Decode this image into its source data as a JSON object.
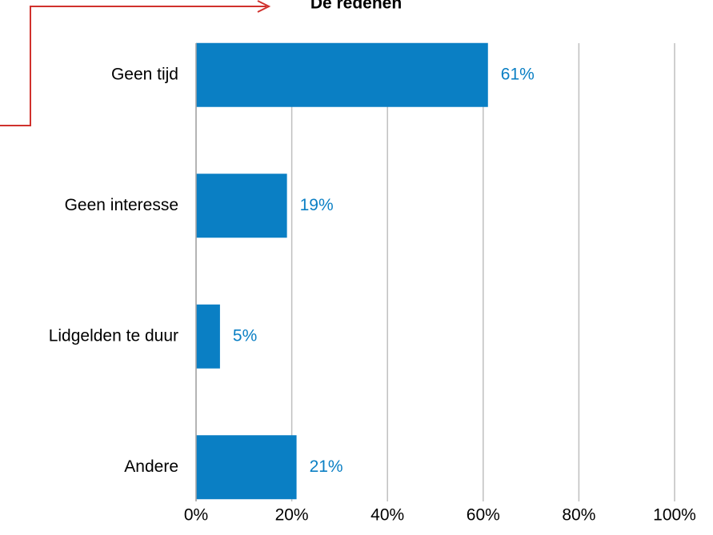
{
  "chart_data": {
    "type": "bar",
    "orientation": "horizontal",
    "title": "De redenen",
    "categories": [
      "Geen tijd",
      "Geen interesse",
      "Lidgelden te duur",
      "Andere"
    ],
    "values": [
      61,
      19,
      5,
      21
    ],
    "value_labels": [
      "61%",
      "19%",
      "5%",
      "21%"
    ],
    "color": "#0a7fc4",
    "xlim": [
      0,
      100
    ],
    "xticks": [
      {
        "value": 0,
        "label": "0%"
      },
      {
        "value": 20,
        "label": "20%"
      },
      {
        "value": 40,
        "label": "40%"
      },
      {
        "value": 60,
        "label": "60%"
      },
      {
        "value": 80,
        "label": "80%"
      },
      {
        "value": 100,
        "label": "100%"
      }
    ],
    "grid": true
  }
}
